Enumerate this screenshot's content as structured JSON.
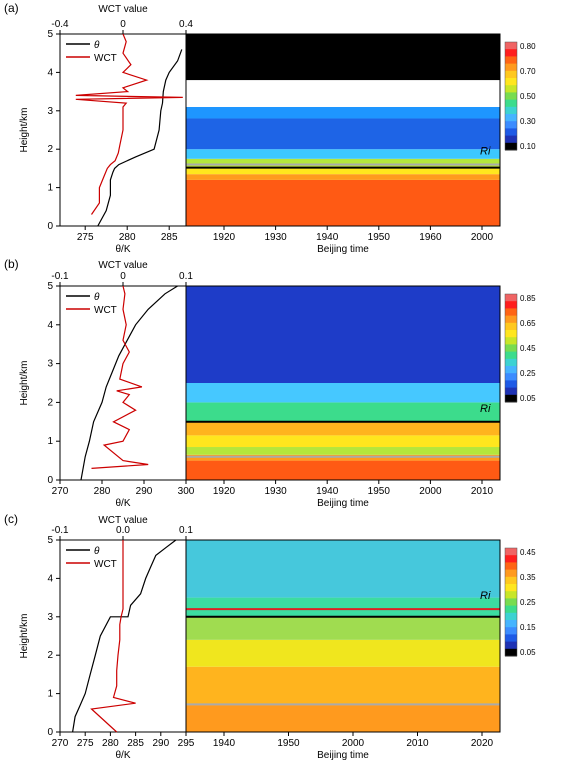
{
  "panels": [
    {
      "label": "(a)",
      "profile_chart": {
        "type": "line",
        "top_axis_title": "WCT value",
        "top_ticks": [
          "-0.4",
          "0",
          "0.4"
        ],
        "top_range": [
          -0.4,
          0.4
        ],
        "bottom_axis_title": "θ/K",
        "bottom_ticks": [
          "275",
          "280",
          "285"
        ],
        "bottom_range": [
          272,
          287
        ],
        "ylabel": "Height/km",
        "y_ticks": [
          "0",
          "1",
          "2",
          "3",
          "4",
          "5"
        ],
        "ylim": [
          0,
          5
        ],
        "legend": [
          "θ",
          "WCT"
        ],
        "series": [
          {
            "name": "θ",
            "color": "#000000",
            "axis": "bottom",
            "x": [
              276.5,
              277.5,
              278.0,
              278.0,
              278.3,
              278.5,
              279.0,
              281.0,
              283.2,
              283.8,
              284.0,
              284.2,
              284.3,
              284.6,
              285.0,
              286.0,
              286.5
            ],
            "y": [
              0.0,
              0.4,
              0.8,
              1.2,
              1.4,
              1.5,
              1.6,
              1.8,
              2.0,
              2.5,
              3.0,
              3.2,
              3.5,
              3.8,
              4.0,
              4.3,
              4.6
            ]
          },
          {
            "name": "WCT",
            "color": "#cc0000",
            "axis": "top",
            "x": [
              -0.2,
              -0.15,
              -0.15,
              -0.12,
              -0.1,
              -0.08,
              -0.05,
              -0.03,
              -0.02,
              0.0,
              0.0,
              0.0,
              0.02,
              -0.3,
              0.38,
              -0.3,
              0.03,
              0.0,
              0.15,
              0.0,
              0.05,
              0.0,
              0.02,
              0.0
            ],
            "y": [
              0.3,
              0.6,
              1.0,
              1.3,
              1.5,
              1.6,
              1.7,
              1.9,
              2.1,
              2.5,
              2.9,
              3.1,
              3.2,
              3.3,
              3.35,
              3.4,
              3.5,
              3.6,
              3.8,
              4.0,
              4.2,
              4.5,
              4.8,
              5.0
            ]
          }
        ]
      },
      "contour": {
        "type": "heatmap",
        "xlabel": "Beijing time",
        "x_ticks": [
          "1920",
          "1930",
          "1940",
          "1950",
          "1960",
          "2000"
        ],
        "annotation": "Ri",
        "colorbar_ticks": [
          "0.80",
          "0.70",
          "0.50",
          "0.30",
          "0.10"
        ],
        "layers": [
          {
            "y": [
              0.0,
              1.2
            ],
            "color": "#ff5a14"
          },
          {
            "y": [
              1.2,
              1.35
            ],
            "color": "#ff9a1e"
          },
          {
            "y": [
              1.35,
              1.55
            ],
            "color": "#ffe61e"
          },
          {
            "y": [
              1.55,
              1.75
            ],
            "color": "#b4e63c"
          },
          {
            "y": [
              1.75,
              2.0
            ],
            "color": "#3cc8ff"
          },
          {
            "y": [
              2.0,
              2.8
            ],
            "color": "#1e64e6"
          },
          {
            "y": [
              2.8,
              3.1
            ],
            "color": "#1e96ff"
          },
          {
            "y": [
              3.1,
              3.8
            ],
            "color": "#ffffff"
          },
          {
            "y": [
              3.8,
              5.0
            ],
            "color": "#000000"
          }
        ],
        "lines": [
          {
            "y": 1.6,
            "color": "#aaaaaa"
          },
          {
            "y": 1.52,
            "color": "#000000"
          }
        ]
      }
    },
    {
      "label": "(b)",
      "profile_chart": {
        "type": "line",
        "top_axis_title": "WCT value",
        "top_ticks": [
          "-0.1",
          "0",
          "0.1"
        ],
        "top_range": [
          -0.1,
          0.1
        ],
        "bottom_axis_title": "θ/K",
        "bottom_ticks": [
          "270",
          "280",
          "290",
          "300"
        ],
        "bottom_range": [
          270,
          300
        ],
        "ylabel": "Height/km",
        "y_ticks": [
          "0",
          "1",
          "2",
          "3",
          "4",
          "5"
        ],
        "ylim": [
          0,
          5
        ],
        "legend": [
          "θ",
          "WCT"
        ],
        "series": [
          {
            "name": "θ",
            "color": "#000000",
            "axis": "bottom",
            "x": [
              275.0,
              276.0,
              277.0,
              278.0,
              280.0,
              281.0,
              282.5,
              284.0,
              286.0,
              288.0,
              291.0,
              295.0,
              298.0
            ],
            "y": [
              0.0,
              0.6,
              1.0,
              1.5,
              2.0,
              2.4,
              2.8,
              3.2,
              3.6,
              4.0,
              4.4,
              4.8,
              5.0
            ]
          },
          {
            "name": "WCT",
            "color": "#cc0000",
            "axis": "top",
            "x": [
              -0.05,
              0.04,
              0.0,
              -0.03,
              0.0,
              0.01,
              -0.015,
              0.02,
              0.0,
              0.01,
              -0.01,
              0.03,
              -0.005,
              0.0,
              0.01,
              0.0,
              0.005,
              0.0,
              0.003,
              0.0
            ],
            "y": [
              0.3,
              0.4,
              0.5,
              0.9,
              1.0,
              1.3,
              1.5,
              1.8,
              2.0,
              2.2,
              2.3,
              2.4,
              2.6,
              3.0,
              3.3,
              3.6,
              4.0,
              4.4,
              4.8,
              5.0
            ]
          }
        ]
      },
      "contour": {
        "type": "heatmap",
        "xlabel": "Beijing time",
        "x_ticks": [
          "1920",
          "1930",
          "1940",
          "1950",
          "2000",
          "2010"
        ],
        "annotation": "Ri",
        "colorbar_ticks": [
          "0.85",
          "0.65",
          "0.45",
          "0.25",
          "0.05"
        ],
        "layers": [
          {
            "y": [
              0.0,
              0.5
            ],
            "color": "#ff5a14"
          },
          {
            "y": [
              0.5,
              0.65
            ],
            "color": "#ff9a1e"
          },
          {
            "y": [
              0.65,
              0.85
            ],
            "color": "#b4e63c"
          },
          {
            "y": [
              0.85,
              1.15
            ],
            "color": "#ffe61e"
          },
          {
            "y": [
              1.15,
              1.5
            ],
            "color": "#ffb41e"
          },
          {
            "y": [
              1.5,
              2.0
            ],
            "color": "#3cdc8c"
          },
          {
            "y": [
              2.0,
              2.5
            ],
            "color": "#46c8ff"
          },
          {
            "y": [
              2.5,
              5.0
            ],
            "color": "#1e3cc8"
          }
        ],
        "lines": [
          {
            "y": 1.5,
            "color": "#000000"
          },
          {
            "y": 0.6,
            "color": "#aaaaaa"
          }
        ]
      }
    },
    {
      "label": "(c)",
      "profile_chart": {
        "type": "line",
        "top_axis_title": "WCT value",
        "top_ticks": [
          "-0.1",
          "0.0",
          "0.1"
        ],
        "top_range": [
          -0.1,
          0.1
        ],
        "bottom_axis_title": "θ/K",
        "bottom_ticks": [
          "270",
          "275",
          "280",
          "285",
          "290",
          "295"
        ],
        "bottom_range": [
          270,
          295
        ],
        "ylabel": "Height/km",
        "y_ticks": [
          "0",
          "1",
          "2",
          "3",
          "4",
          "5"
        ],
        "ylim": [
          0,
          5
        ],
        "legend": [
          "θ",
          "WCT"
        ],
        "series": [
          {
            "name": "θ",
            "color": "#000000",
            "axis": "bottom",
            "x": [
              272.5,
              273.0,
              274.0,
              275.0,
              276.0,
              277.0,
              278.0,
              280.0,
              283.5,
              284.0,
              286.0,
              287.0,
              288.0,
              289.0,
              291.0,
              293.0
            ],
            "y": [
              0.0,
              0.4,
              0.7,
              1.0,
              1.5,
              2.0,
              2.5,
              3.0,
              3.0,
              3.3,
              3.6,
              4.0,
              4.3,
              4.6,
              4.8,
              5.0
            ]
          },
          {
            "name": "WCT",
            "color": "#cc0000",
            "axis": "top",
            "x": [
              -0.01,
              -0.05,
              0.02,
              -0.015,
              -0.01,
              -0.01,
              -0.008,
              -0.005,
              -0.005,
              -0.003,
              0.0,
              0.0,
              0.0,
              0.0,
              0.0
            ],
            "y": [
              0.0,
              0.6,
              0.75,
              0.9,
              1.2,
              1.6,
              2.0,
              2.4,
              2.8,
              3.0,
              3.2,
              3.6,
              4.0,
              4.5,
              5.0
            ]
          }
        ]
      },
      "contour": {
        "type": "heatmap",
        "xlabel": "Beijing time",
        "x_ticks": [
          "1940",
          "1950",
          "2000",
          "2010",
          "2020"
        ],
        "annotation": "Ri",
        "colorbar_ticks": [
          "0.45",
          "0.35",
          "0.25",
          "0.15",
          "0.05"
        ],
        "layers": [
          {
            "y": [
              0.0,
              0.7
            ],
            "color": "#ff9a1e"
          },
          {
            "y": [
              0.7,
              1.7
            ],
            "color": "#ffb41e"
          },
          {
            "y": [
              1.7,
              2.4
            ],
            "color": "#f0e61e"
          },
          {
            "y": [
              2.4,
              3.0
            ],
            "color": "#a0dc50"
          },
          {
            "y": [
              3.0,
              3.5
            ],
            "color": "#3cdca0"
          },
          {
            "y": [
              3.5,
              5.0
            ],
            "color": "#46c8dc"
          }
        ],
        "lines": [
          {
            "y": 3.2,
            "color": "#dd2222"
          },
          {
            "y": 3.0,
            "color": "#000000"
          },
          {
            "y": 0.72,
            "color": "#aaaaaa"
          }
        ]
      }
    }
  ],
  "colors": {
    "theta_line": "#000000",
    "wct_line": "#cc0000",
    "ri_label": "#9b2020"
  },
  "colorbar_palette": [
    "#f06464",
    "#ff1e1e",
    "#ff6414",
    "#ff9a1e",
    "#ffc81e",
    "#ffe61e",
    "#c8e628",
    "#78dc50",
    "#3cdc8c",
    "#3cd2d2",
    "#46b4ff",
    "#3c8cff",
    "#1e5ae6",
    "#1e32b4",
    "#000000"
  ]
}
